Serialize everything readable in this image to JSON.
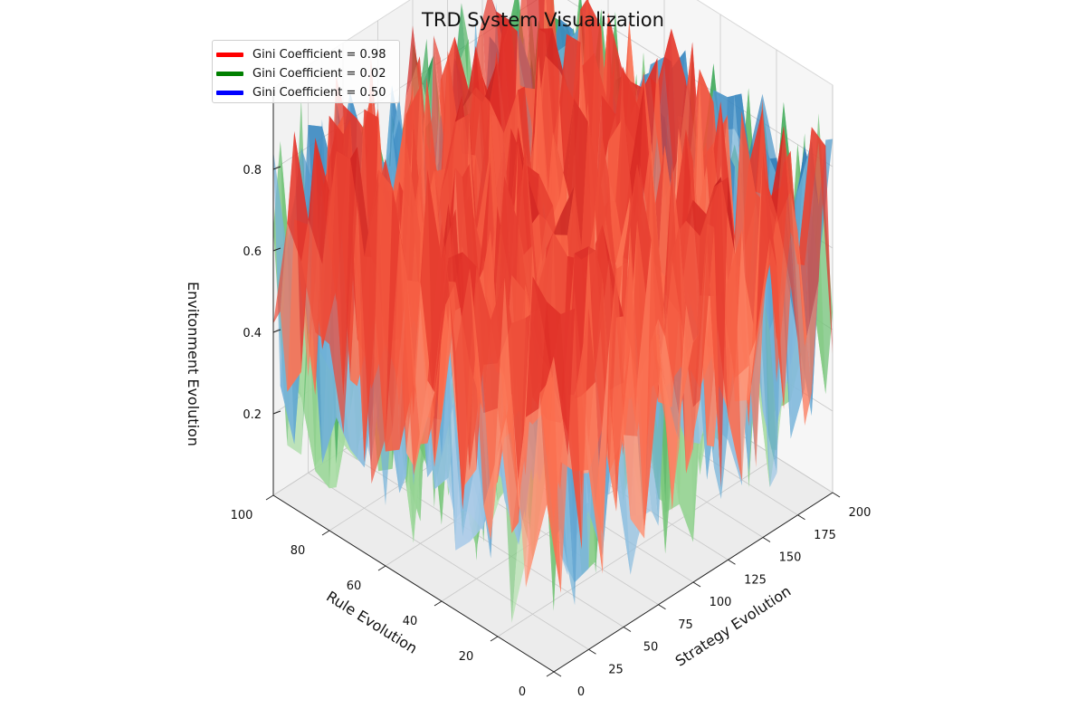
{
  "chart_data": {
    "type": "surface3d",
    "title": "TRD System Visualization",
    "xlabel": "Strategy Evolution",
    "ylabel": "Rule Evolution",
    "zlabel": "Envitonment Evolution",
    "xlim": [
      0,
      200
    ],
    "ylim": [
      0,
      100
    ],
    "zlim": [
      0.0,
      0.95
    ],
    "x_ticks": [
      "0",
      "25",
      "50",
      "75",
      "100",
      "125",
      "150",
      "175",
      "200"
    ],
    "y_ticks": [
      "0",
      "20",
      "40",
      "60",
      "80",
      "100"
    ],
    "z_ticks": [
      "0.2",
      "0.4",
      "0.6",
      "0.8"
    ],
    "grid": true,
    "legend_position": "top-left",
    "series": [
      {
        "name": "Gini Coefficient = 0.98",
        "color": "#ff0000",
        "colormap": "Reds",
        "z_mean": 0.55,
        "z_noise": 0.4
      },
      {
        "name": "Gini Coefficient = 0.02",
        "color": "#008000",
        "colormap": "Greens",
        "z_mean": 0.5,
        "z_noise": 0.45
      },
      {
        "name": "Gini Coefficient = 0.50",
        "color": "#0000ff",
        "colormap": "Blues",
        "z_mean": 0.5,
        "z_noise": 0.4
      }
    ]
  }
}
